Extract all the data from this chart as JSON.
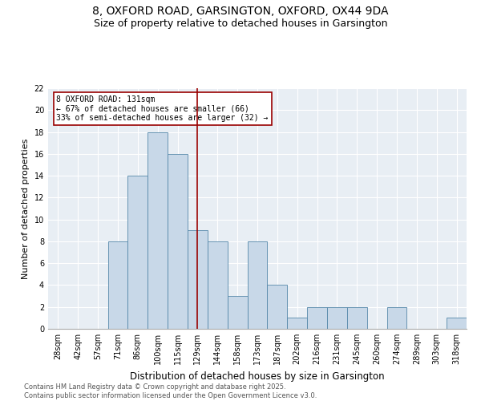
{
  "title1": "8, OXFORD ROAD, GARSINGTON, OXFORD, OX44 9DA",
  "title2": "Size of property relative to detached houses in Garsington",
  "xlabel": "Distribution of detached houses by size in Garsington",
  "ylabel": "Number of detached properties",
  "categories": [
    "28sqm",
    "42sqm",
    "57sqm",
    "71sqm",
    "86sqm",
    "100sqm",
    "115sqm",
    "129sqm",
    "144sqm",
    "158sqm",
    "173sqm",
    "187sqm",
    "202sqm",
    "216sqm",
    "231sqm",
    "245sqm",
    "260sqm",
    "274sqm",
    "289sqm",
    "303sqm",
    "318sqm"
  ],
  "values": [
    0,
    0,
    0,
    8,
    14,
    18,
    16,
    9,
    8,
    3,
    8,
    4,
    1,
    2,
    2,
    2,
    0,
    2,
    0,
    0,
    1
  ],
  "bar_color": "#c8d8e8",
  "bar_edge_color": "#5588aa",
  "vline_index": 7,
  "vline_color": "#990000",
  "annotation_line1": "8 OXFORD ROAD: 131sqm",
  "annotation_line2": "← 67% of detached houses are smaller (66)",
  "annotation_line3": "33% of semi-detached houses are larger (32) →",
  "annotation_box_color": "#990000",
  "annotation_box_facecolor": "white",
  "ylim": [
    0,
    22
  ],
  "yticks": [
    0,
    2,
    4,
    6,
    8,
    10,
    12,
    14,
    16,
    18,
    20,
    22
  ],
  "background_color": "#e8eef4",
  "footer": "Contains HM Land Registry data © Crown copyright and database right 2025.\nContains public sector information licensed under the Open Government Licence v3.0.",
  "title1_fontsize": 10,
  "title2_fontsize": 9,
  "xlabel_fontsize": 8.5,
  "ylabel_fontsize": 8,
  "tick_fontsize": 7,
  "annotation_fontsize": 7,
  "footer_fontsize": 6
}
